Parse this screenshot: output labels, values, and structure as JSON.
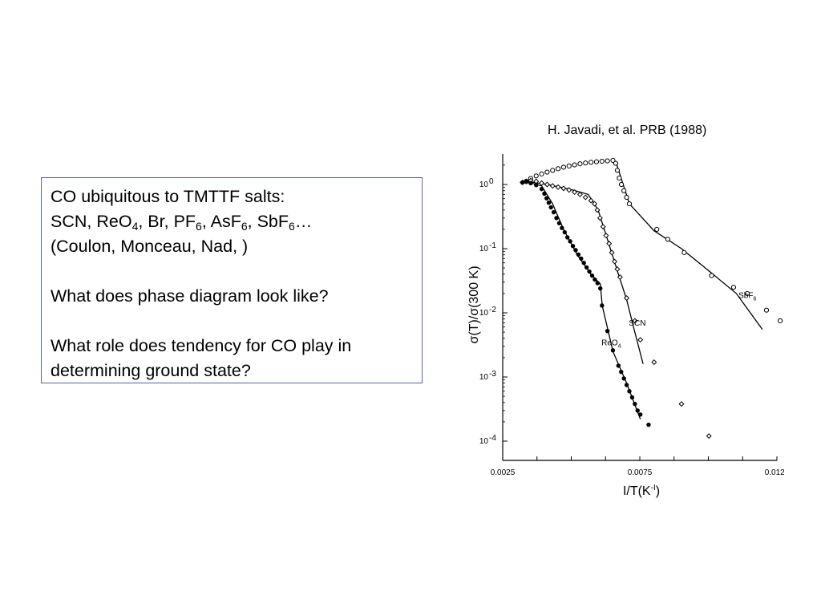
{
  "citation": "H. Javadi,  et al. PRB (1988)",
  "textbox": {
    "line1": "CO ubiquitous to TMTTF salts:",
    "line2": [
      {
        "t": "SCN, ReO"
      },
      {
        "sub": "4"
      },
      {
        "t": ", Br, PF"
      },
      {
        "sub": "6"
      },
      {
        "t": ", AsF"
      },
      {
        "sub": "6"
      },
      {
        "t": ", SbF"
      },
      {
        "sub": "6"
      },
      {
        "t": "…"
      }
    ],
    "line3": "(Coulon, Monceau, Nad,  )",
    "line4": "What does phase diagram look like?",
    "line5": "What role does tendency for CO play in",
    "line6": "determining ground state?"
  },
  "chart_data": {
    "type": "scatter",
    "xlabel": "I/T(K",
    "xlabel_sup": "-I",
    "xlabel_end": ")",
    "ylabel": "σ(T)/σ(300 K)",
    "xlim": [
      0.0025,
      0.0125
    ],
    "ylim": [
      0.0001,
      2
    ],
    "yscale": "log",
    "x_tick_labels": [
      {
        "value": 0.0025,
        "label": "0.0025"
      },
      {
        "value": 0.0075,
        "label": "0.0075"
      },
      {
        "value": 0.0125,
        "label": "0.0125"
      }
    ],
    "y_tick_labels": [
      {
        "value": 1,
        "label": "10",
        "exp": "0"
      },
      {
        "value": 0.1,
        "label": "10",
        "exp": "-1"
      },
      {
        "value": 0.01,
        "label": "10",
        "exp": "-2"
      },
      {
        "value": 0.001,
        "label": "10",
        "exp": "-3"
      },
      {
        "value": 0.0001,
        "label": "10",
        "exp": "-4"
      }
    ],
    "series": [
      {
        "name": "SbF6",
        "label": "SbF",
        "label_sub": "6",
        "marker": "circle-open",
        "points": [
          [
            0.00336,
            1.12
          ],
          [
            0.00352,
            1.24
          ],
          [
            0.00372,
            1.36
          ],
          [
            0.00392,
            1.46
          ],
          [
            0.00412,
            1.56
          ],
          [
            0.00432,
            1.66
          ],
          [
            0.00452,
            1.76
          ],
          [
            0.00472,
            1.86
          ],
          [
            0.00492,
            1.94
          ],
          [
            0.00512,
            2.02
          ],
          [
            0.00532,
            2.1
          ],
          [
            0.00552,
            2.16
          ],
          [
            0.00572,
            2.22
          ],
          [
            0.00592,
            2.26
          ],
          [
            0.00612,
            2.3
          ],
          [
            0.00632,
            2.33
          ],
          [
            0.00652,
            2.37
          ],
          [
            0.00662,
            2.14
          ],
          [
            0.00668,
            1.66
          ],
          [
            0.00675,
            1.26
          ],
          [
            0.00683,
            1.0
          ],
          [
            0.00692,
            0.8
          ],
          [
            0.00702,
            0.63
          ],
          [
            0.00712,
            0.5
          ],
          [
            0.00812,
            0.2
          ],
          [
            0.00852,
            0.14
          ],
          [
            0.00912,
            0.087
          ],
          [
            0.01012,
            0.038
          ],
          [
            0.01092,
            0.025
          ],
          [
            0.01142,
            0.02
          ],
          [
            0.01212,
            0.011
          ],
          [
            0.01262,
            0.0075
          ]
        ],
        "curve": [
          [
            0.00662,
            2.3
          ],
          [
            0.00712,
            0.5
          ],
          [
            0.00802,
            0.19
          ],
          [
            0.00902,
            0.1
          ],
          [
            0.01002,
            0.045
          ],
          [
            0.01102,
            0.02
          ],
          [
            0.01197,
            0.0055
          ]
        ]
      },
      {
        "name": "SCN",
        "label": "SCN",
        "marker": "diamond-open",
        "points": [
          [
            0.00322,
            1.08
          ],
          [
            0.00336,
            1.12
          ],
          [
            0.00352,
            1.15
          ],
          [
            0.00372,
            1.12
          ],
          [
            0.00392,
            1.05
          ],
          [
            0.00412,
            1.0
          ],
          [
            0.00432,
            0.95
          ],
          [
            0.00452,
            0.91
          ],
          [
            0.00472,
            0.87
          ],
          [
            0.00492,
            0.82
          ],
          [
            0.00512,
            0.76
          ],
          [
            0.00532,
            0.7
          ],
          [
            0.00552,
            0.63
          ],
          [
            0.00572,
            0.56
          ],
          [
            0.00585,
            0.5
          ],
          [
            0.00595,
            0.4
          ],
          [
            0.00605,
            0.3
          ],
          [
            0.00616,
            0.22
          ],
          [
            0.00627,
            0.16
          ],
          [
            0.00638,
            0.12
          ],
          [
            0.00648,
            0.087
          ],
          [
            0.00658,
            0.063
          ],
          [
            0.00668,
            0.048
          ],
          [
            0.00678,
            0.036
          ],
          [
            0.00702,
            0.017
          ],
          [
            0.00732,
            0.0075
          ],
          [
            0.00752,
            0.0038
          ],
          [
            0.00802,
            0.0017
          ],
          [
            0.00902,
            0.00038
          ],
          [
            0.01002,
            0.00012
          ]
        ],
        "curve": [
          [
            0.00338,
            1.12
          ],
          [
            0.00412,
            1.0
          ],
          [
            0.00492,
            0.85
          ],
          [
            0.00562,
            0.7
          ],
          [
            0.00598,
            0.4
          ],
          [
            0.00632,
            0.14
          ],
          [
            0.00672,
            0.04
          ],
          [
            0.00702,
            0.016
          ],
          [
            0.00732,
            0.005
          ],
          [
            0.00762,
            0.0016
          ]
        ]
      },
      {
        "name": "ReO4",
        "label": "ReO",
        "label_sub": "4",
        "marker": "circle-filled",
        "points": [
          [
            0.00322,
            1.07
          ],
          [
            0.00336,
            1.1
          ],
          [
            0.00352,
            1.05
          ],
          [
            0.00372,
            0.98
          ],
          [
            0.00392,
            0.85
          ],
          [
            0.00402,
            0.72
          ],
          [
            0.0041,
            0.61
          ],
          [
            0.00418,
            0.52
          ],
          [
            0.00426,
            0.44
          ],
          [
            0.00436,
            0.37
          ],
          [
            0.00446,
            0.3
          ],
          [
            0.00456,
            0.25
          ],
          [
            0.00466,
            0.21
          ],
          [
            0.00476,
            0.18
          ],
          [
            0.00486,
            0.15
          ],
          [
            0.00496,
            0.13
          ],
          [
            0.00506,
            0.11
          ],
          [
            0.00516,
            0.095
          ],
          [
            0.00526,
            0.081
          ],
          [
            0.00536,
            0.07
          ],
          [
            0.00546,
            0.06
          ],
          [
            0.00556,
            0.051
          ],
          [
            0.00566,
            0.044
          ],
          [
            0.00576,
            0.038
          ],
          [
            0.00586,
            0.033
          ],
          [
            0.00596,
            0.029
          ],
          [
            0.00606,
            0.024
          ],
          [
            0.00612,
            0.013
          ],
          [
            0.00632,
            0.0052
          ],
          [
            0.00652,
            0.0026
          ],
          [
            0.00672,
            0.0015
          ],
          [
            0.00682,
            0.0012
          ],
          [
            0.00692,
            0.00095
          ],
          [
            0.00702,
            0.00075
          ],
          [
            0.00712,
            0.0006
          ],
          [
            0.00722,
            0.00048
          ],
          [
            0.00732,
            0.00038
          ],
          [
            0.00742,
            0.0003
          ],
          [
            0.00752,
            0.00026
          ],
          [
            0.00782,
            0.00018
          ]
        ],
        "curve": [
          [
            0.00338,
            1.1
          ],
          [
            0.00392,
            0.95
          ],
          [
            0.00432,
            0.5
          ],
          [
            0.00472,
            0.2
          ],
          [
            0.00522,
            0.08
          ],
          [
            0.00572,
            0.04
          ],
          [
            0.00606,
            0.028
          ],
          [
            0.00613,
            0.013
          ],
          [
            0.00652,
            0.0025
          ],
          [
            0.00702,
            0.0008
          ],
          [
            0.00752,
            0.00022
          ]
        ]
      }
    ]
  }
}
